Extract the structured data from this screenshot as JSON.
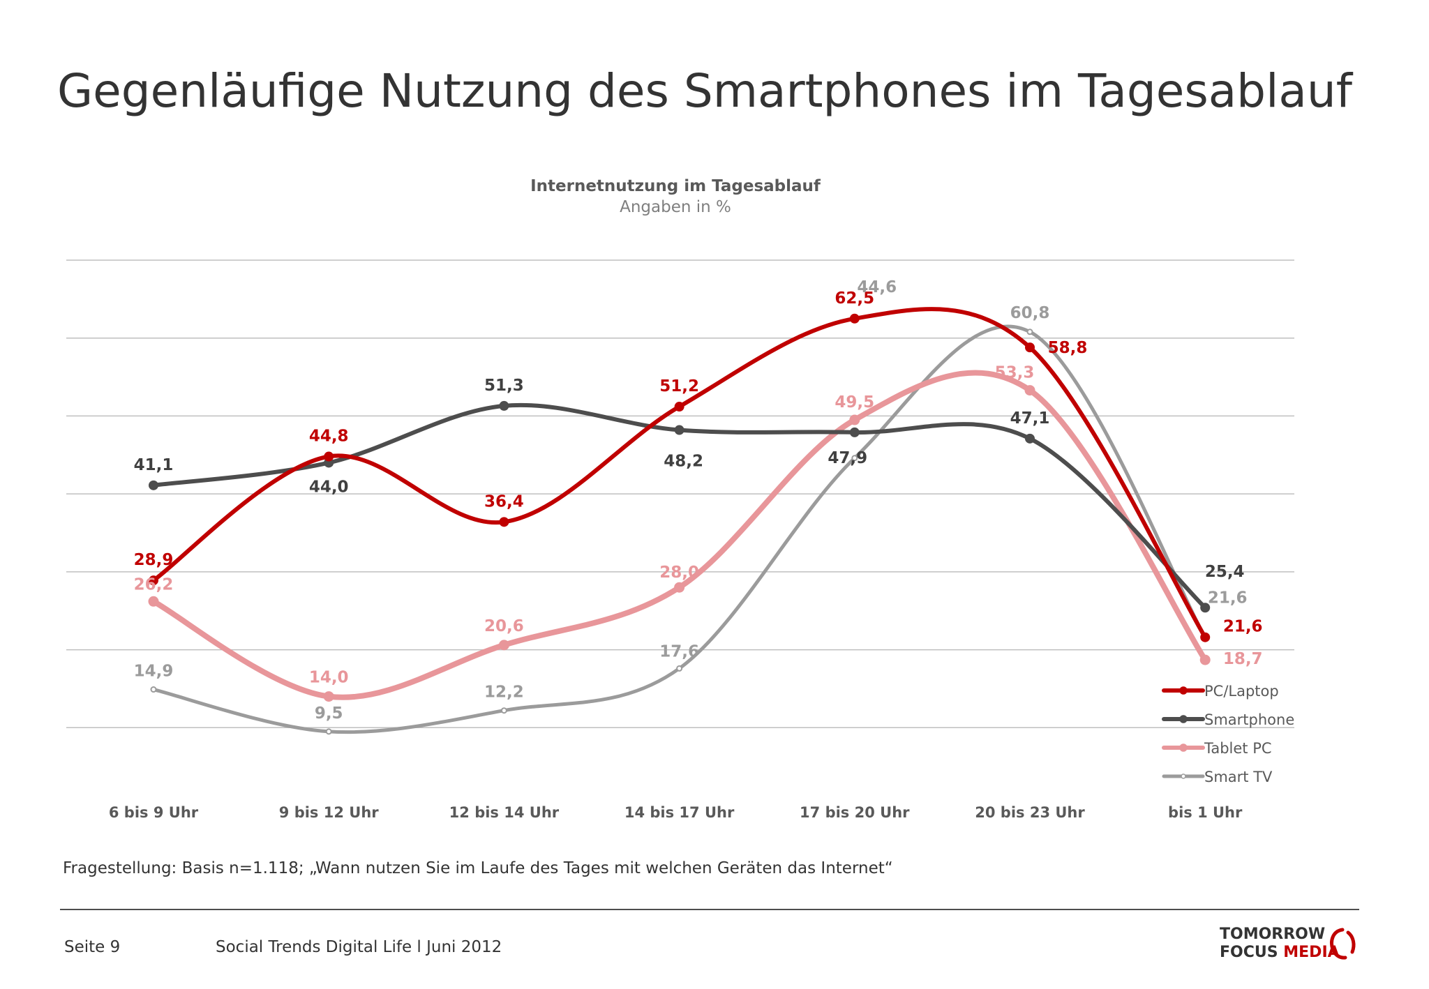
{
  "slide": {
    "title": "Gegenläufige Nutzung des Smartphones im Tagesablauf",
    "footnote": "Fragestellung: Basis n=1.118; „Wann nutzen Sie im Laufe des Tages mit welchen Geräten das Internet“",
    "page": "Seite 9",
    "footer": "Social Trends Digital Life l Juni 2012",
    "logo": {
      "line1": "TOMORROW",
      "focus": "FOCUS",
      "media": "MEDIA"
    }
  },
  "colors": {
    "pc": "#c00000",
    "smartphone": "#4d4d4d",
    "tablet": "#e8969a",
    "tv": "#9b9b9b",
    "grid": "#bfbfbf",
    "brand": "#c00000"
  },
  "chart_data": {
    "type": "line",
    "title": "Internetnutzung im Tagesablauf",
    "subtitle": "Angaben in %",
    "categories": [
      "6 bis 9 Uhr",
      "9 bis 12 Uhr",
      "12 bis 14 Uhr",
      "14 bis 17 Uhr",
      "17 bis 20 Uhr",
      "20 bis 23 Uhr",
      "bis 1 Uhr"
    ],
    "ylim": [
      0,
      70
    ],
    "grid": true,
    "smooth": true,
    "legend_position": "bottom-right",
    "series": [
      {
        "name": "PC/Laptop",
        "color": "#c00000",
        "values": [
          28.9,
          44.8,
          36.4,
          51.2,
          62.5,
          58.8,
          21.6
        ],
        "labels": [
          "28,9",
          "44,8",
          "36,4",
          "51,2",
          "62,5",
          "58,8",
          "21,6"
        ]
      },
      {
        "name": "Smartphone",
        "color": "#4d4d4d",
        "values": [
          41.1,
          44.0,
          51.3,
          48.2,
          47.9,
          47.1,
          25.4
        ],
        "labels": [
          "41,1",
          "44,0",
          "51,3",
          "48,2",
          "47,9",
          "47,1",
          "25,4"
        ]
      },
      {
        "name": "Tablet PC",
        "color": "#e8969a",
        "values": [
          26.2,
          14.0,
          20.6,
          28.0,
          49.5,
          53.3,
          18.7
        ],
        "labels": [
          "26,2",
          "14,0",
          "20,6",
          "28,0",
          "49,5",
          "53,3",
          "18,7"
        ]
      },
      {
        "name": "Smart TV",
        "color": "#9b9b9b",
        "values": [
          14.9,
          9.5,
          12.2,
          17.6,
          44.6,
          60.8,
          21.6
        ],
        "labels": [
          "14,9",
          "9,5",
          "12,2",
          "17,6",
          "44,6",
          "60,8",
          "21,6"
        ]
      }
    ]
  }
}
